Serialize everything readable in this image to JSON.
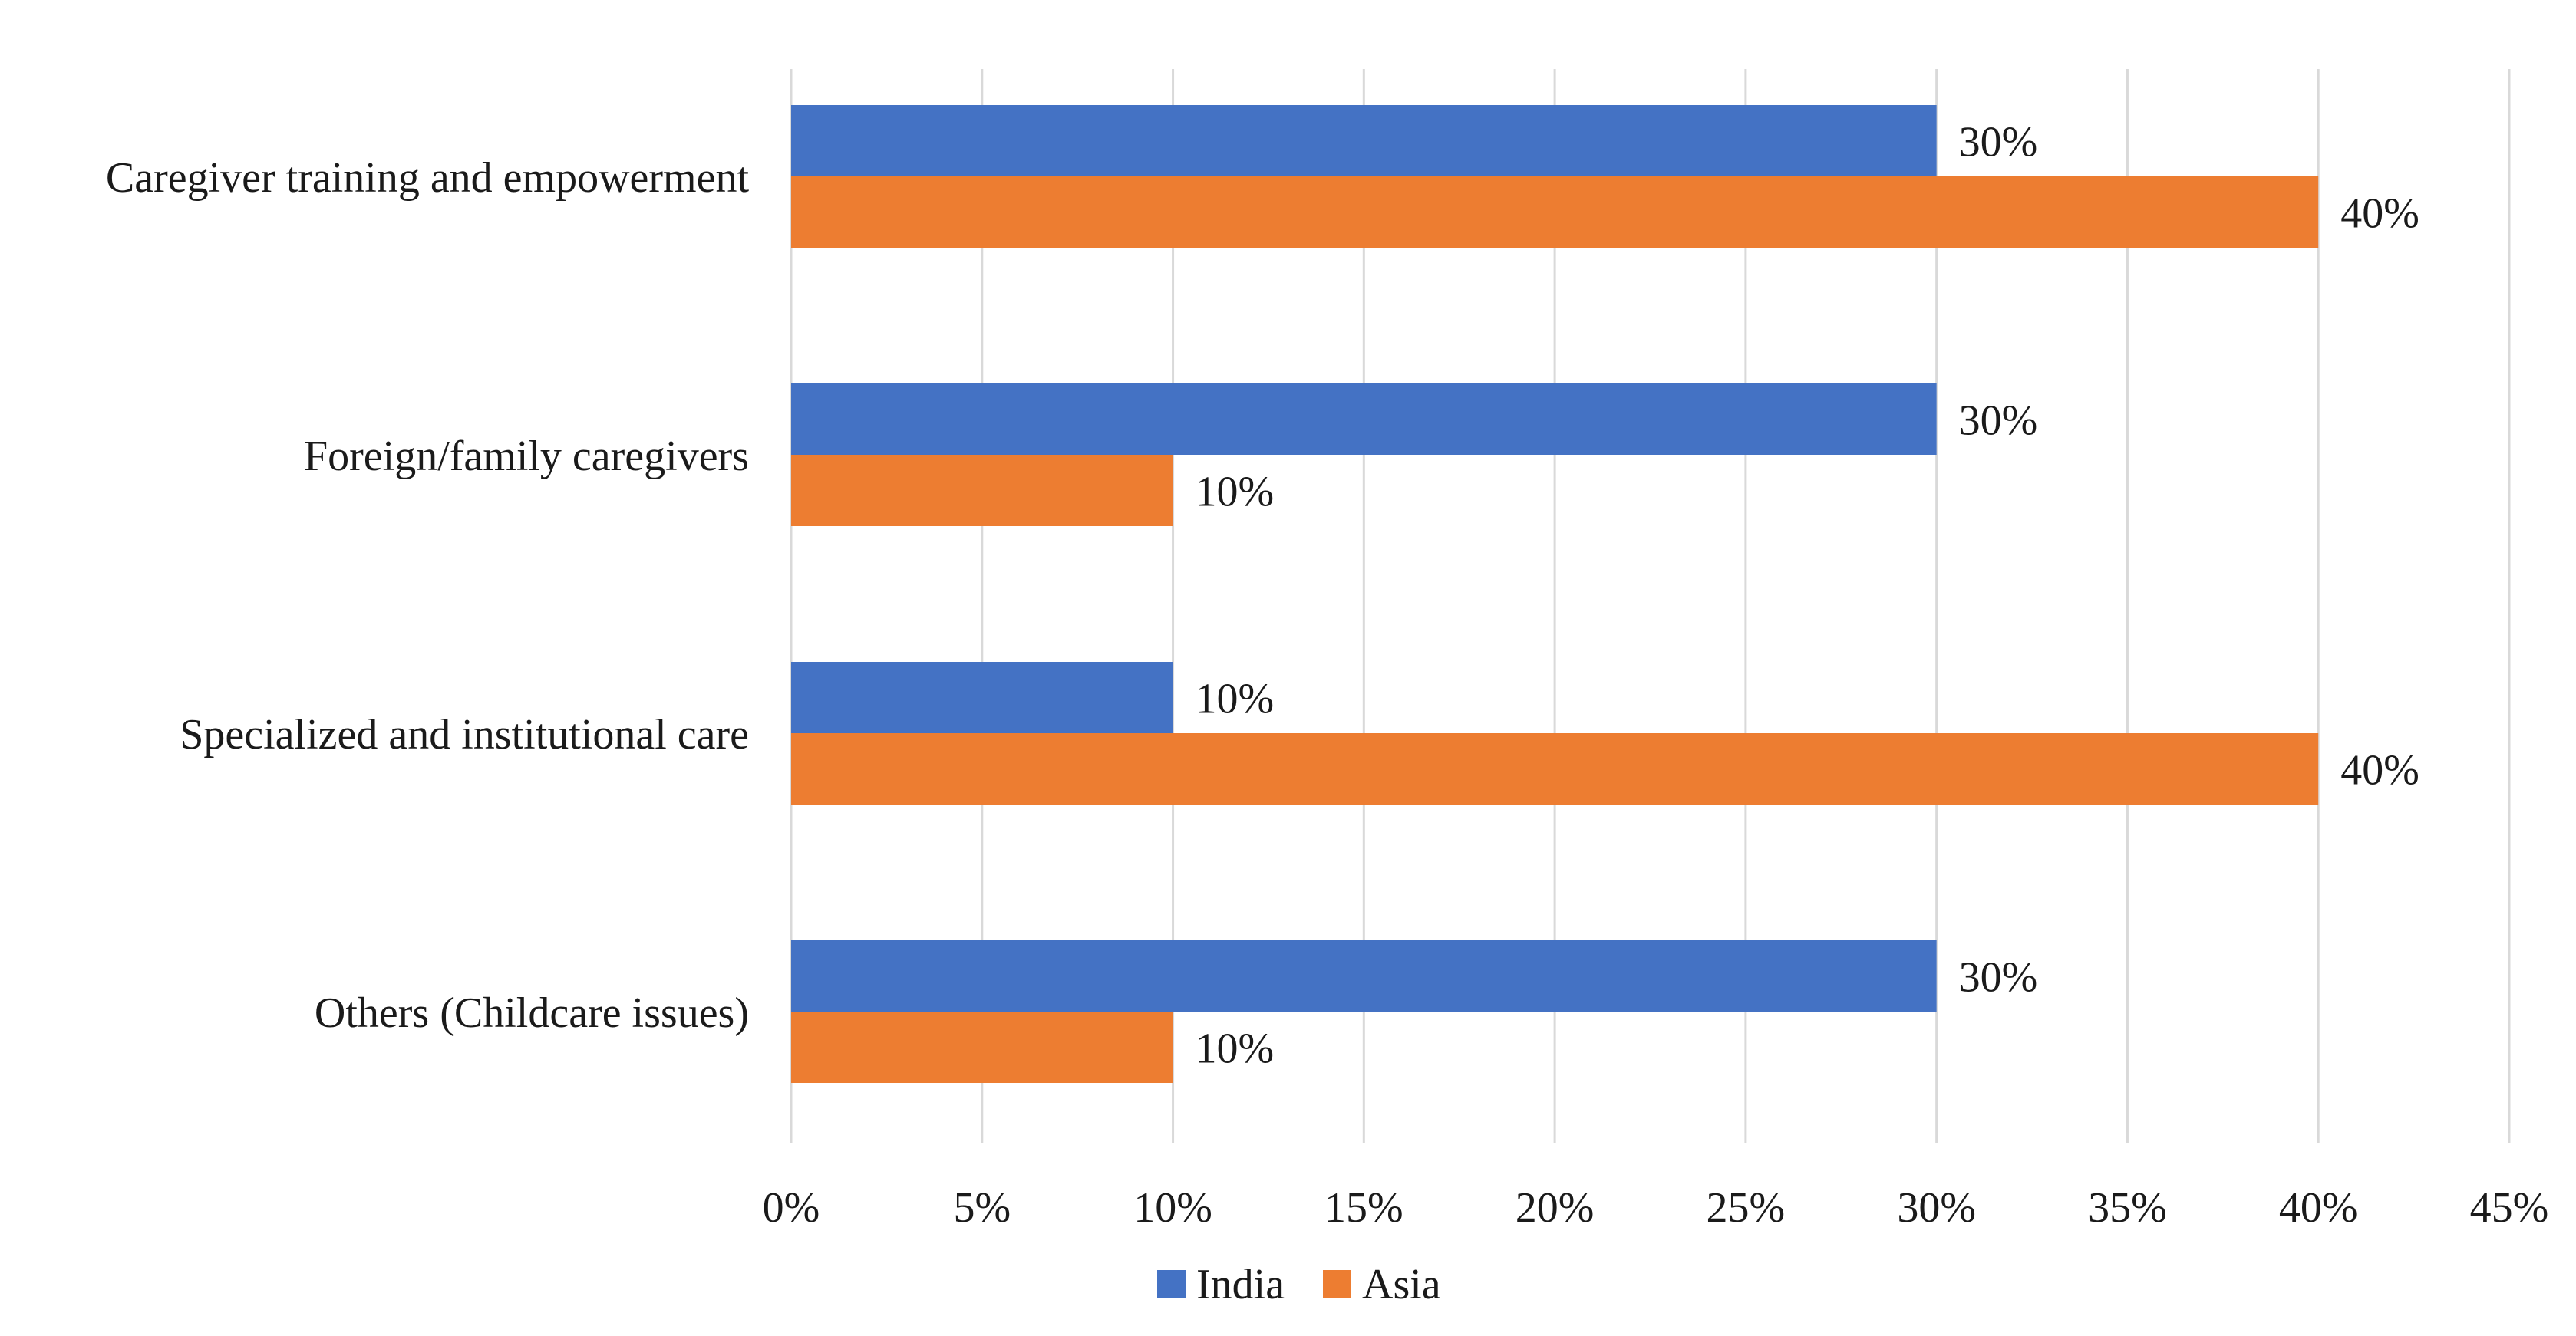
{
  "chart_data": {
    "type": "bar",
    "orientation": "horizontal",
    "title": "",
    "xlabel": "",
    "ylabel": "",
    "categories": [
      "Caregiver training and empowerment",
      "Foreign/family caregivers",
      "Specialized and institutional care",
      "Others (Childcare issues)"
    ],
    "series": [
      {
        "name": "India",
        "color": "#4472C4",
        "values": [
          30,
          30,
          10,
          30
        ],
        "labels": [
          "30%",
          "30%",
          "10%",
          "30%"
        ]
      },
      {
        "name": "Asia",
        "color": "#ED7D31",
        "values": [
          40,
          10,
          40,
          10
        ],
        "labels": [
          "40%",
          "10%",
          "40%",
          "10%"
        ]
      }
    ],
    "xlim": [
      0,
      45
    ],
    "ticks": [
      0,
      5,
      10,
      15,
      20,
      25,
      30,
      35,
      40,
      45
    ],
    "tick_labels": [
      "0%",
      "5%",
      "10%",
      "15%",
      "20%",
      "25%",
      "30%",
      "35%",
      "40%",
      "45%"
    ],
    "grid": true,
    "legend_position": "bottom"
  }
}
